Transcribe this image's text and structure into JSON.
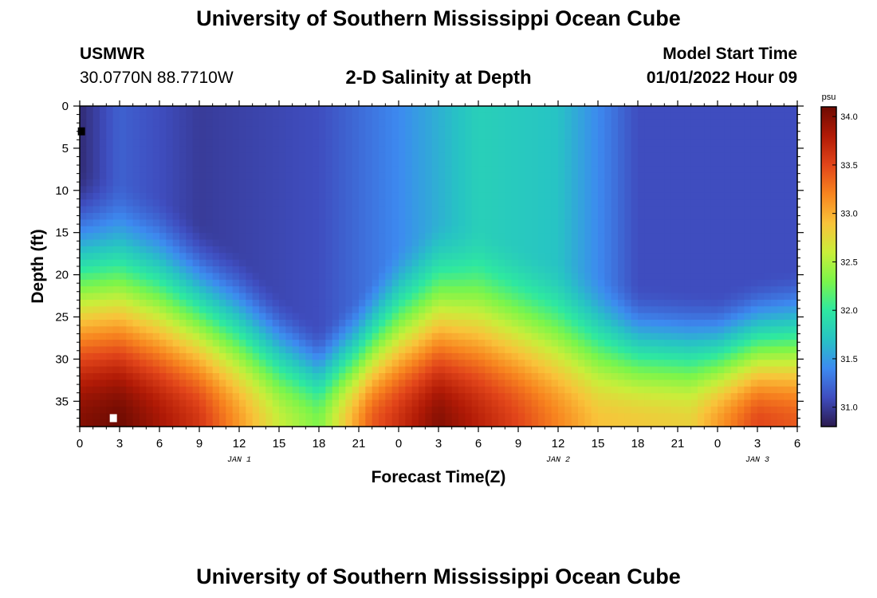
{
  "page": {
    "title": "University of Southern Mississippi Ocean Cube",
    "title_repeat": "University of Southern Mississippi Ocean Cube",
    "station": "USMWR",
    "coordinates": "30.0770N  88.7710W",
    "subtitle": "2-D Salinity at Depth",
    "model_start_label": "Model Start Time",
    "model_start_time": "01/01/2022 Hour 09"
  },
  "chart_data": {
    "type": "heatmap",
    "title": "2-D Salinity at Depth",
    "xlabel": "Forecast Time(Z)",
    "ylabel": "Depth (ft)",
    "x_range_hours": [
      0,
      54
    ],
    "x_ticks": [
      "0",
      "3",
      "6",
      "9",
      "12",
      "15",
      "18",
      "21",
      "0",
      "3",
      "6",
      "9",
      "12",
      "15",
      "18",
      "21",
      "0",
      "3",
      "6"
    ],
    "date_labels": [
      {
        "label": "JAN 1",
        "hour": 12
      },
      {
        "label": "JAN 2",
        "hour": 36
      },
      {
        "label": "JAN 3",
        "hour": 51
      }
    ],
    "ylim": [
      0,
      38
    ],
    "y_ticks": [
      0,
      5,
      10,
      15,
      20,
      25,
      30,
      35
    ],
    "colorbar": {
      "unit": "psu",
      "range": [
        30.8,
        34.1
      ],
      "ticks": [
        "31.0",
        "31.5",
        "32.0",
        "32.5",
        "33.0",
        "33.5",
        "34.0"
      ],
      "colors": [
        "#2b1a4e",
        "#3f4dbf",
        "#3d8af0",
        "#27c3c4",
        "#2ee8a0",
        "#7cf54a",
        "#c9ee3a",
        "#f9c33a",
        "#f8851f",
        "#e2451a",
        "#b11a06",
        "#6e0b02"
      ]
    },
    "surface_salinity_by_hour": [
      [
        0,
        30.9
      ],
      [
        3,
        31.2
      ],
      [
        9,
        31.0
      ],
      [
        18,
        31.1
      ],
      [
        24,
        31.4
      ],
      [
        30,
        31.8
      ],
      [
        36,
        31.7
      ],
      [
        42,
        31.1
      ],
      [
        48,
        31.1
      ],
      [
        54,
        31.1
      ]
    ],
    "halocline_depth_ft_by_hour": [
      [
        0,
        18
      ],
      [
        6,
        21
      ],
      [
        12,
        28
      ],
      [
        15,
        33
      ],
      [
        18,
        37
      ],
      [
        21,
        33
      ],
      [
        24,
        27
      ],
      [
        27,
        24
      ],
      [
        30,
        25
      ],
      [
        36,
        29
      ],
      [
        42,
        32
      ],
      [
        48,
        33
      ],
      [
        51,
        31
      ],
      [
        54,
        30
      ]
    ],
    "bottom_salinity_by_hour": [
      [
        0,
        34.0
      ],
      [
        3,
        34.1
      ],
      [
        9,
        33.6
      ],
      [
        15,
        32.6
      ],
      [
        18,
        32.3
      ],
      [
        22,
        33.4
      ],
      [
        27,
        34.0
      ],
      [
        33,
        33.5
      ],
      [
        39,
        32.9
      ],
      [
        46,
        32.8
      ],
      [
        51,
        33.5
      ],
      [
        54,
        33.4
      ]
    ],
    "markers": [
      {
        "hour": 2.5,
        "depth_ft": 37,
        "color": "#ffffff"
      },
      {
        "hour": 0.1,
        "depth_ft": 3,
        "color": "#000000"
      }
    ]
  }
}
